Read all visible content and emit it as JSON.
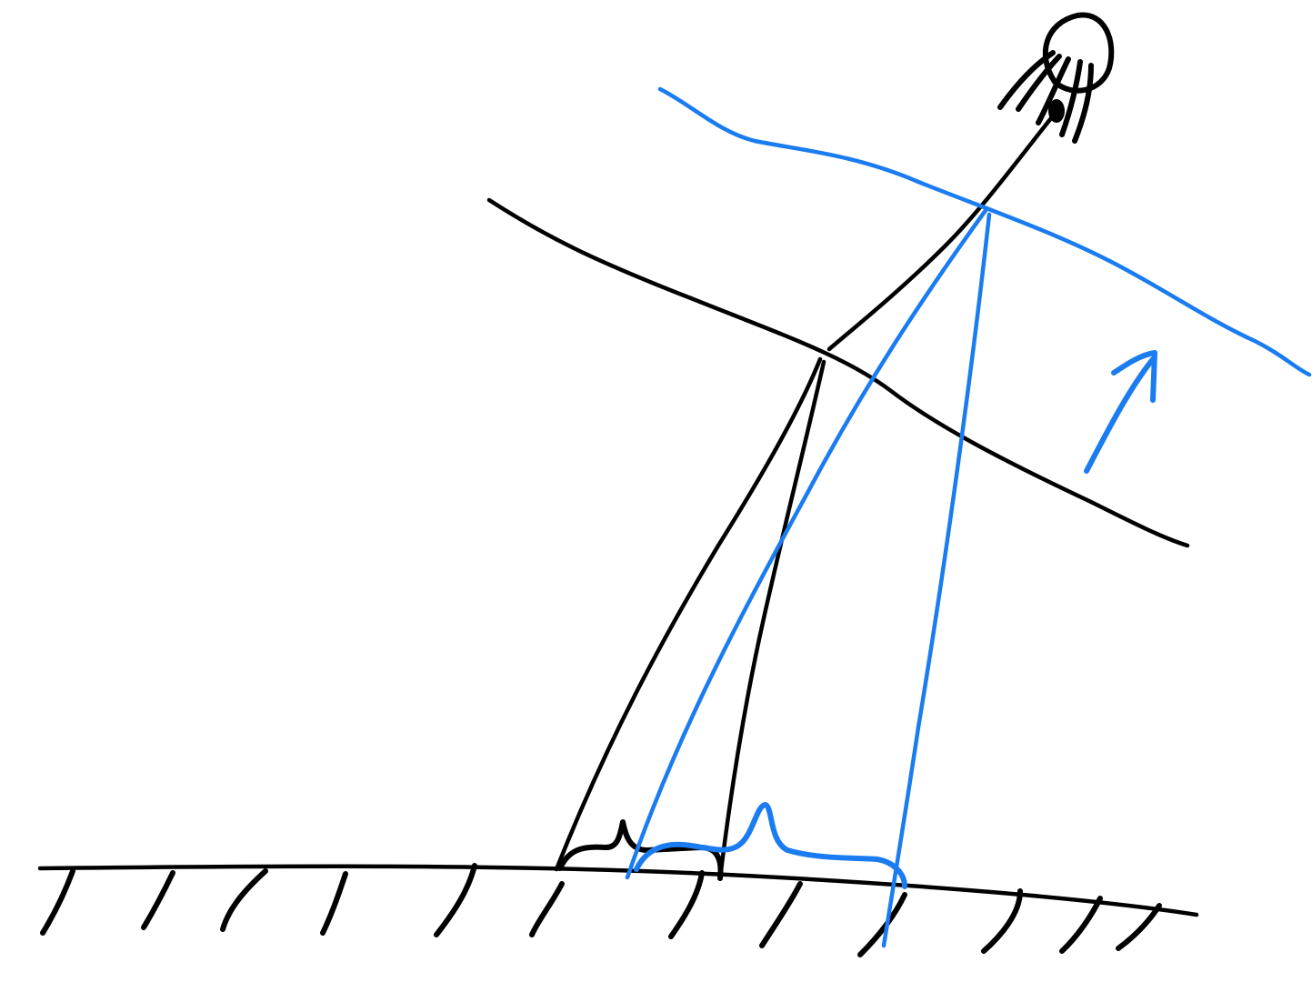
{
  "canvas": {
    "background": "#ffffff"
  },
  "colors": {
    "black_ink": "#000000",
    "blue_ink": "#1a7cf0"
  },
  "elements": {
    "light_source": "light-source-icon",
    "ground": "ground-line",
    "hatching": "ground-hatching",
    "original_surface": "black-curve",
    "raised_surface": "blue-curve",
    "direction_arrow": "arrow-up-icon",
    "black_beam": "black-light-cone",
    "blue_beam": "blue-light-cone",
    "black_spot": "black-footprint-brace",
    "blue_spot": "blue-footprint-brace"
  }
}
